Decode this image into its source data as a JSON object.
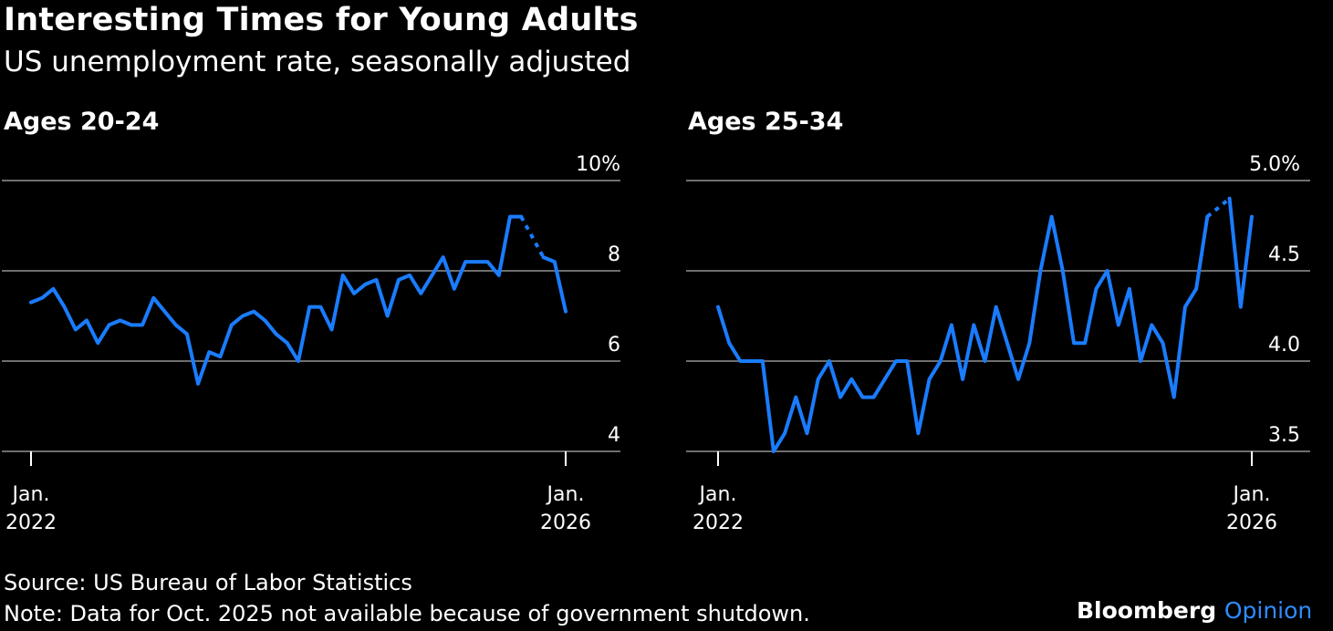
{
  "title": "Interesting Times for Young Adults",
  "subtitle": "US unemployment rate, seasonally adjusted",
  "source": "Source: US Bureau of Labor Statistics",
  "note": "Note: Data for Oct. 2025 not available because of government shutdown.",
  "brand": {
    "name": "Bloomberg",
    "suffix": "Opinion"
  },
  "colors": {
    "background": "#000000",
    "line": "#1a7cff",
    "grid": "#6e6e6e",
    "text": "#ffffff",
    "brand_accent": "#2f8cff"
  },
  "chart_data": [
    {
      "type": "line",
      "title": "Ages 20-24",
      "ylim": [
        4,
        10
      ],
      "yticks": [
        4,
        6,
        8,
        10
      ],
      "ytick_labels": [
        "4",
        "6",
        "8",
        "10%"
      ],
      "xticks": [
        {
          "x": "2022-01",
          "label": [
            "Jan.",
            "2022"
          ]
        },
        {
          "x": "2026-01",
          "label": [
            "Jan.",
            "2026"
          ]
        }
      ],
      "grid": true,
      "series": [
        {
          "x": [
            "2022-01",
            "2022-02",
            "2022-03",
            "2022-04",
            "2022-05",
            "2022-06",
            "2022-07",
            "2022-08",
            "2022-09",
            "2022-10",
            "2022-11",
            "2022-12",
            "2023-01",
            "2023-02",
            "2023-03",
            "2023-04",
            "2023-05",
            "2023-06",
            "2023-07",
            "2023-08",
            "2023-09",
            "2023-10",
            "2023-11",
            "2023-12",
            "2024-01",
            "2024-02",
            "2024-03",
            "2024-04",
            "2024-05",
            "2024-06",
            "2024-07",
            "2024-08",
            "2024-09",
            "2024-10",
            "2024-11",
            "2024-12",
            "2025-01",
            "2025-02",
            "2025-03",
            "2025-04",
            "2025-05",
            "2025-06",
            "2025-07",
            "2025-08",
            "2025-09",
            "2025-11",
            "2025-12"
          ],
          "values": [
            7.3,
            7.4,
            7.6,
            7.2,
            6.7,
            6.9,
            6.4,
            6.8,
            6.9,
            6.8,
            6.8,
            7.4,
            7.1,
            6.8,
            6.6,
            5.5,
            6.2,
            6.1,
            6.8,
            7.0,
            7.1,
            6.9,
            6.6,
            6.4,
            6.0,
            7.2,
            7.2,
            6.7,
            7.9,
            7.5,
            7.7,
            7.8,
            7.0,
            7.8,
            7.9,
            7.5,
            7.9,
            8.3,
            7.6,
            8.2,
            8.2,
            8.2,
            7.9,
            9.2,
            9.2,
            8.3,
            8.2
          ],
          "gap_after": "2025-09",
          "trailing": {
            "x": "2026-01",
            "value": 7.1
          }
        }
      ]
    },
    {
      "type": "line",
      "title": "Ages 25-34",
      "ylim": [
        3.5,
        5.0
      ],
      "yticks": [
        3.5,
        4.0,
        4.5,
        5.0
      ],
      "ytick_labels": [
        "3.5",
        "4.0",
        "4.5",
        "5.0%"
      ],
      "xticks": [
        {
          "x": "2022-01",
          "label": [
            "Jan.",
            "2022"
          ]
        },
        {
          "x": "2026-01",
          "label": [
            "Jan.",
            "2026"
          ]
        }
      ],
      "grid": true,
      "series": [
        {
          "x": [
            "2022-01",
            "2022-02",
            "2022-03",
            "2022-04",
            "2022-05",
            "2022-06",
            "2022-07",
            "2022-08",
            "2022-09",
            "2022-10",
            "2022-11",
            "2022-12",
            "2023-01",
            "2023-02",
            "2023-03",
            "2023-04",
            "2023-05",
            "2023-06",
            "2023-07",
            "2023-08",
            "2023-09",
            "2023-10",
            "2023-11",
            "2023-12",
            "2024-01",
            "2024-02",
            "2024-03",
            "2024-04",
            "2024-05",
            "2024-06",
            "2024-07",
            "2024-08",
            "2024-09",
            "2024-10",
            "2024-11",
            "2024-12",
            "2025-01",
            "2025-02",
            "2025-03",
            "2025-04",
            "2025-05",
            "2025-06",
            "2025-07",
            "2025-08",
            "2025-09",
            "2025-11",
            "2025-12"
          ],
          "values": [
            4.3,
            4.1,
            4.0,
            4.0,
            4.0,
            3.5,
            3.6,
            3.8,
            3.6,
            3.9,
            4.0,
            3.8,
            3.9,
            3.8,
            3.8,
            3.9,
            4.0,
            4.0,
            3.6,
            3.9,
            4.0,
            4.2,
            3.9,
            4.2,
            4.0,
            4.3,
            4.1,
            3.9,
            4.1,
            4.5,
            4.8,
            4.5,
            4.1,
            4.1,
            4.4,
            4.5,
            4.2,
            4.4,
            4.0,
            4.2,
            4.1,
            3.8,
            4.3,
            4.4,
            4.8,
            4.9,
            4.3
          ],
          "gap_after": "2025-09",
          "trailing": {
            "x": "2026-01",
            "value": 4.8
          }
        }
      ]
    }
  ]
}
